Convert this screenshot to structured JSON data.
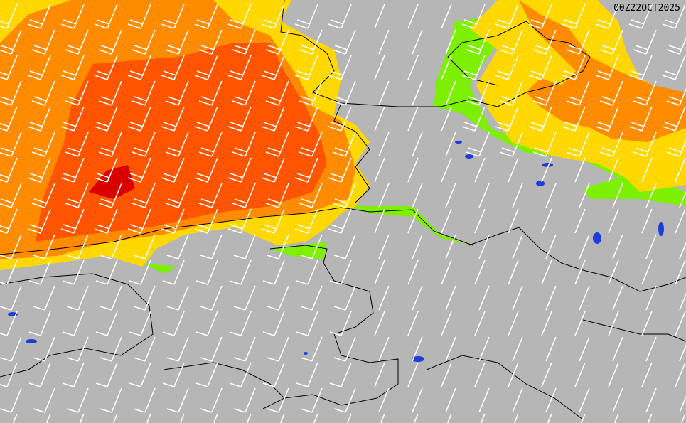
{
  "timestamp": "00Z22OCT2025",
  "colors": {
    "land": "#b6b6b6",
    "green": "#7cf000",
    "yellow": "#ffd800",
    "orange": "#ff8c00",
    "dark_orange": "#ff5500",
    "red": "#d80000",
    "water": "#1c3cdc",
    "barb": "#ffffff",
    "border": "#000000"
  },
  "layers": [
    "wind-speed-shading",
    "wind-barbs",
    "coastlines",
    "borders"
  ]
}
